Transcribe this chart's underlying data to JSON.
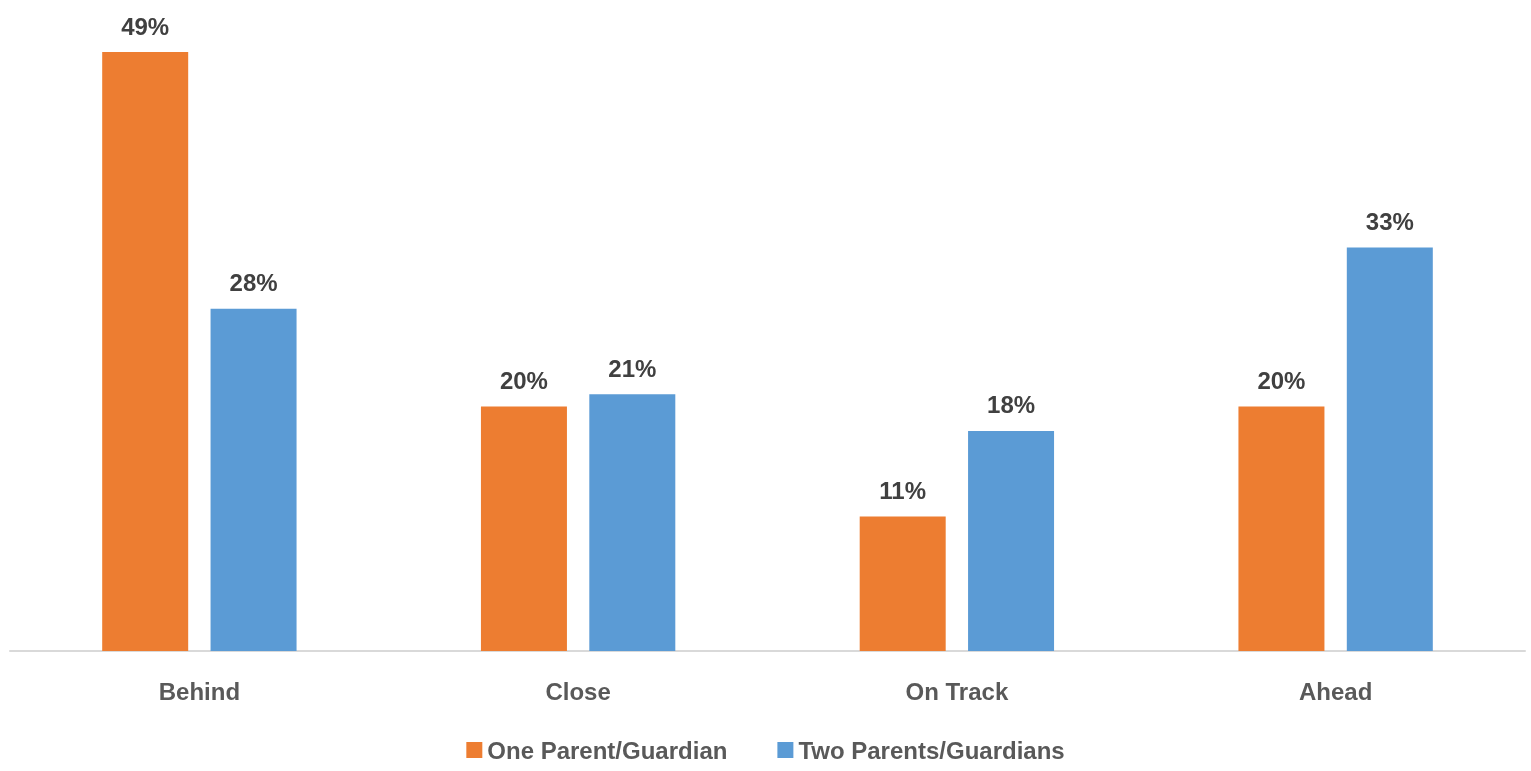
{
  "chart_data": {
    "type": "bar",
    "categories": [
      "Behind",
      "Close",
      "On Track",
      "Ahead"
    ],
    "series": [
      {
        "name": "One Parent/Guardian",
        "color": "#ed7d31",
        "values": [
          49,
          20,
          11,
          20
        ],
        "value_labels": [
          "49%",
          "20%",
          "11%",
          "20%"
        ]
      },
      {
        "name": "Two Parents/Guardians",
        "color": "#5b9bd5",
        "values": [
          28,
          21,
          18,
          33
        ],
        "value_labels": [
          "28%",
          "21%",
          "18%",
          "33%"
        ]
      }
    ],
    "legend": "bottom"
  }
}
